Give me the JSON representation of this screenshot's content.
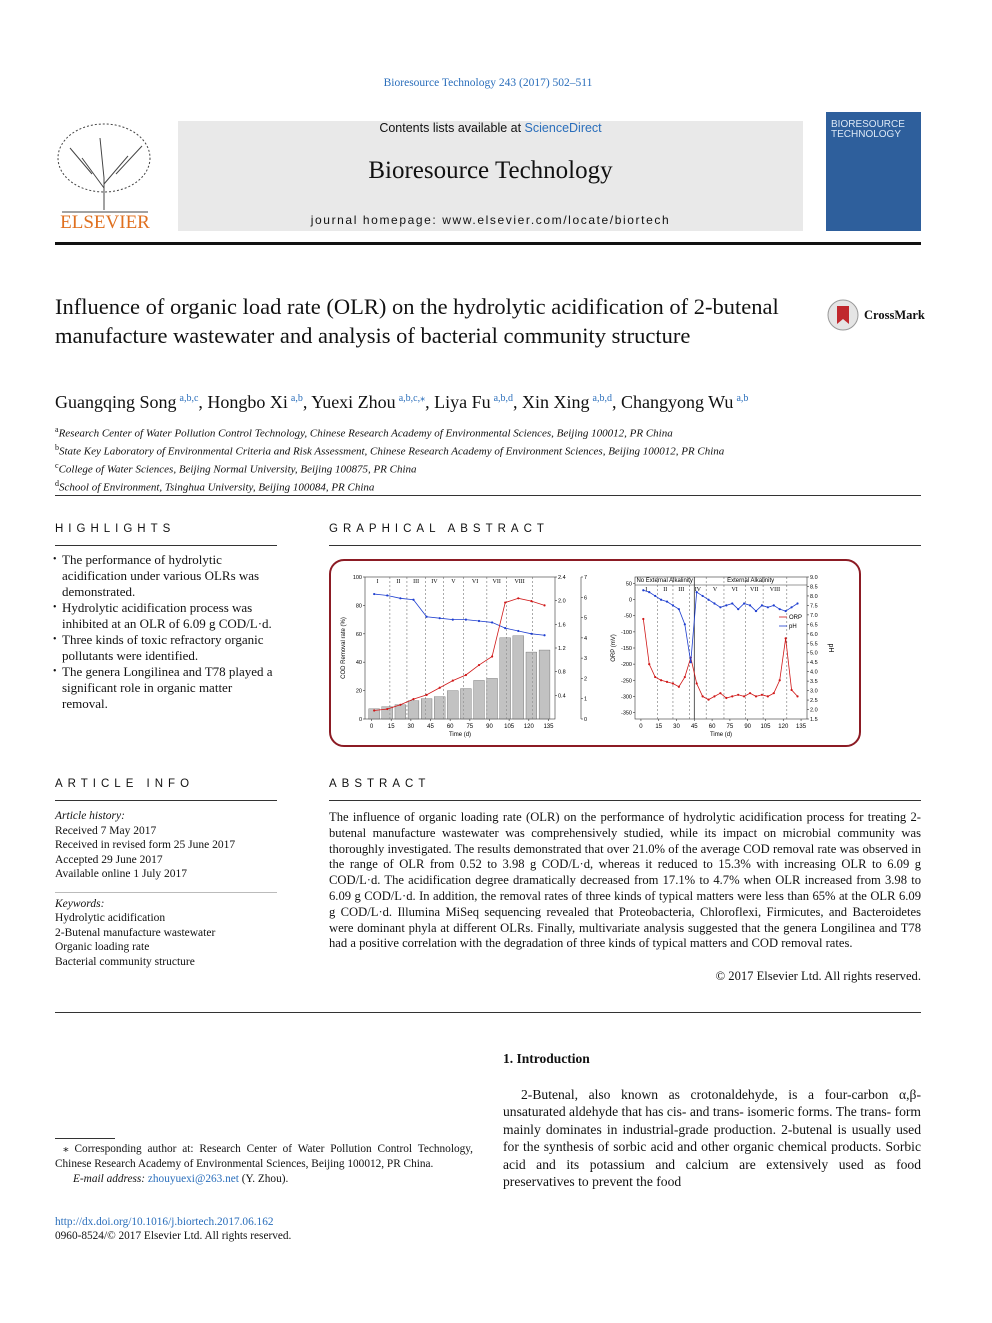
{
  "header": {
    "citation": "Bioresource Technology 243 (2017) 502–511",
    "contents": "Contents lists available at ",
    "sciencedirect": "ScienceDirect",
    "journal": "Bioresource Technology",
    "homepage": "journal homepage: www.elsevier.com/locate/biortech",
    "publisher": "ELSEVIER",
    "cover_title": "BIORESOURCE TECHNOLOGY"
  },
  "article": {
    "title": "Influence of organic load rate (OLR) on the hydrolytic acidification of 2-butenal manufacture wastewater and analysis of bacterial community structure",
    "crossmark": "CrossMark",
    "authors": [
      {
        "name": "Guangqing Song",
        "aff": "a,b,c"
      },
      {
        "name": "Hongbo Xi",
        "aff": "a,b"
      },
      {
        "name": "Yuexi Zhou",
        "aff": "a,b,c,⁎"
      },
      {
        "name": "Liya Fu",
        "aff": "a,b,d"
      },
      {
        "name": "Xin Xing",
        "aff": "a,b,d"
      },
      {
        "name": "Changyong Wu",
        "aff": "a,b"
      }
    ],
    "affiliations": [
      {
        "mark": "a",
        "text": "Research Center of Water Pollution Control Technology, Chinese Research Academy of Environmental Sciences, Beijing 100012, PR China"
      },
      {
        "mark": "b",
        "text": "State Key Laboratory of Environmental Criteria and Risk Assessment, Chinese Research Academy of Environment Sciences, Beijing 100012, PR China"
      },
      {
        "mark": "c",
        "text": "College of Water Sciences, Beijing Normal University, Beijing 100875, PR China"
      },
      {
        "mark": "d",
        "text": "School of Environment, Tsinghua University, Beijing 100084, PR China"
      }
    ]
  },
  "highlights": {
    "heading": "HIGHLIGHTS",
    "items": [
      "The performance of hydrolytic acidification under various OLRs was demonstrated.",
      "Hydrolytic acidification process was inhibited at an OLR of 6.09 g COD/L·d.",
      "Three kinds of toxic refractory organic pollutants were identified.",
      "The genera Longilinea and T78 played a significant role in organic matter removal."
    ]
  },
  "graphical_abstract": {
    "heading": "GRAPHICAL ABSTRACT",
    "chart_data": [
      {
        "type": "combo",
        "xlabel": "Time (d)",
        "ylabel": "COD Removal rate (%)",
        "xlim": [
          -5,
          140
        ],
        "xticks": [
          0,
          15,
          30,
          45,
          60,
          75,
          90,
          105,
          120,
          135
        ],
        "ylim": [
          0,
          100
        ],
        "yticks": [
          0,
          20,
          40,
          60,
          80,
          100
        ],
        "y2lim": [
          0,
          2.4
        ],
        "y2ticks": [
          {
            "value": 0.4,
            "label": "0.4"
          },
          {
            "value": 0.8,
            "label": "0.8"
          },
          {
            "value": 1.2,
            "label": "1.2"
          },
          {
            "value": 1.6,
            "label": "1.6"
          },
          {
            "value": 2.0,
            "label": "2.0"
          },
          {
            "value": 2.4,
            "label": "2.4"
          }
        ],
        "y3lim": [
          0,
          7
        ],
        "y3ticks": [
          0,
          1,
          2,
          3,
          4,
          5,
          6,
          7
        ],
        "phases": [
          "I",
          "II",
          "III",
          "IV",
          "V",
          "VI",
          "VII",
          "VIII"
        ],
        "phase_bounds": [
          -5,
          14,
          27,
          41,
          55,
          70,
          88,
          103,
          123,
          140
        ],
        "x": [
          2,
          12,
          22,
          32,
          42,
          52,
          62,
          72,
          82,
          92,
          102,
          112,
          122,
          132
        ],
        "series": [
          {
            "color": "#9a9a9a",
            "style": "bar",
            "axis": "y3",
            "values": [
              0.5,
              0.6,
              0.7,
              0.9,
              1.0,
              1.1,
              1.4,
              1.5,
              1.9,
              2.0,
              4.0,
              4.1,
              3.3,
              3.4
            ]
          },
          {
            "color": "#1f3fd0",
            "style": "line",
            "axis": "y",
            "values": [
              88,
              87,
              85,
              84,
              72,
              71,
              70,
              70,
              69,
              68,
              64,
              62,
              60,
              59
            ]
          },
          {
            "color": "#d01818",
            "style": "line",
            "axis": "y",
            "values": [
              6,
              7,
              10,
              14,
              17,
              22,
              27,
              31,
              38,
              44,
              82,
              85,
              83,
              80
            ]
          }
        ]
      },
      {
        "type": "combo",
        "xlabel": "Time (d)",
        "ylabel": "ORP (mV)",
        "y2label": "pH",
        "xlim": [
          -5,
          140
        ],
        "xticks": [
          0,
          15,
          30,
          45,
          60,
          75,
          90,
          105,
          120,
          135
        ],
        "ylim": [
          -370,
          70
        ],
        "yticks": [
          50,
          0,
          -50,
          -100,
          -150,
          -200,
          -250,
          -300,
          -350
        ],
        "y2lim": [
          1.5,
          9.0
        ],
        "y2ticks": [
          {
            "value": 1.5,
            "label": "1.5"
          },
          {
            "value": 2.0,
            "label": "2.0"
          },
          {
            "value": 2.5,
            "label": "2.5"
          },
          {
            "value": 3.0,
            "label": "3.0"
          },
          {
            "value": 3.5,
            "label": "3.5"
          },
          {
            "value": 4.0,
            "label": "4.0"
          },
          {
            "value": 4.5,
            "label": "4.5"
          },
          {
            "value": 5.0,
            "label": "5.0"
          },
          {
            "value": 5.5,
            "label": "5.5"
          },
          {
            "value": 6.0,
            "label": "6.0"
          },
          {
            "value": 6.5,
            "label": "6.5"
          },
          {
            "value": 7.0,
            "label": "7.0"
          },
          {
            "value": 7.5,
            "label": "7.5"
          },
          {
            "value": 8.0,
            "label": "8.0"
          },
          {
            "value": 8.5,
            "label": "8.5"
          },
          {
            "value": 9.0,
            "label": "9.0"
          }
        ],
        "phases": [
          "I",
          "II",
          "III",
          "IV",
          "V",
          "VI",
          "VII",
          "VIII"
        ],
        "phase_bounds": [
          -5,
          14,
          27,
          41,
          55,
          70,
          88,
          103,
          123,
          140
        ],
        "regions": [
          {
            "label": "No External Alkalinity",
            "start": -5,
            "end": 45
          },
          {
            "label": "External Alkalinity",
            "start": 45,
            "end": 140
          }
        ],
        "legend": "right",
        "x": [
          2,
          7,
          12,
          17,
          22,
          27,
          32,
          37,
          42,
          47,
          52,
          57,
          62,
          67,
          72,
          77,
          82,
          87,
          92,
          97,
          102,
          107,
          112,
          117,
          122,
          127,
          132
        ],
        "series": [
          {
            "name": "ORP",
            "color": "#d01818",
            "style": "line",
            "axis": "y",
            "values": [
              -60,
              -200,
              -240,
              -250,
              -255,
              -260,
              -270,
              -240,
              -180,
              -260,
              -300,
              -310,
              -300,
              -290,
              -305,
              -300,
              -295,
              -300,
              -290,
              -300,
              -295,
              -300,
              -290,
              -250,
              -120,
              -280,
              -300
            ]
          },
          {
            "name": "pH",
            "color": "#1f3fd0",
            "style": "line",
            "axis": "y2",
            "values": [
              8.3,
              8.2,
              8.0,
              7.8,
              7.7,
              7.5,
              7.3,
              6.5,
              4.5,
              8.2,
              8.0,
              7.8,
              7.6,
              7.4,
              7.5,
              7.6,
              7.3,
              7.6,
              7.5,
              7.2,
              7.5,
              7.4,
              7.5,
              7.3,
              7.2,
              7.4,
              7.6
            ]
          }
        ]
      }
    ]
  },
  "article_info": {
    "heading": "ARTICLE INFO",
    "history_label": "Article history:",
    "history": [
      "Received 7 May 2017",
      "Received in revised form 25 June 2017",
      "Accepted 29 June 2017",
      "Available online 1 July 2017"
    ],
    "keywords_label": "Keywords:",
    "keywords": [
      "Hydrolytic acidification",
      "2-Butenal manufacture wastewater",
      "Organic loading rate",
      "Bacterial community structure"
    ]
  },
  "abstract": {
    "heading": "ABSTRACT",
    "text": "The influence of organic loading rate (OLR) on the performance of hydrolytic acidification process for treating 2-butenal manufacture wastewater was comprehensively studied, while its impact on microbial community was thoroughly investigated. The results demonstrated that over 21.0% of the average COD removal rate was observed in the range of OLR from 0.52 to 3.98 g COD/L·d, whereas it reduced to 15.3% with increasing OLR to 6.09 g COD/L·d. The acidification degree dramatically decreased from 17.1% to 4.7% when OLR increased from 3.98 to 6.09 g COD/L·d. In addition, the removal rates of three kinds of typical matters were less than 65% at the OLR 6.09 g COD/L·d. Illumina MiSeq sequencing revealed that Proteobacteria, Chloroflexi, Firmicutes, and Bacteroidetes were dominant phyla at different OLRs. Finally, multivariate analysis suggested that the genera Longilinea and T78 had a positive correlation with the degradation of three kinds of typical matters and COD removal rates.",
    "copyright": "© 2017 Elsevier Ltd. All rights reserved."
  },
  "introduction": {
    "heading": "1. Introduction",
    "text": "2-Butenal, also known as crotonaldehyde, is a four-carbon α,β-unsaturated aldehyde that has cis- and trans- isomeric forms. The trans- form mainly dominates in industrial-grade production. 2-butenal is usually used for the synthesis of sorbic acid and other organic chemical products. Sorbic acid and its potassium and calcium are extensively used as food preservatives to prevent the food"
  },
  "footnote": {
    "corresponding": "⁎ Corresponding author at: Research Center of Water Pollution Control Technology, Chinese Research Academy of Environmental Sciences, Beijing 100012, PR China.",
    "email_label": "E-mail address: ",
    "email": "zhouyuexi@263.net",
    "email_owner": " (Y. Zhou)."
  },
  "footer": {
    "doi": "http://dx.doi.org/10.1016/j.biortech.2017.06.162",
    "issn": "0960-8524/© 2017 Elsevier Ltd. All rights reserved."
  }
}
